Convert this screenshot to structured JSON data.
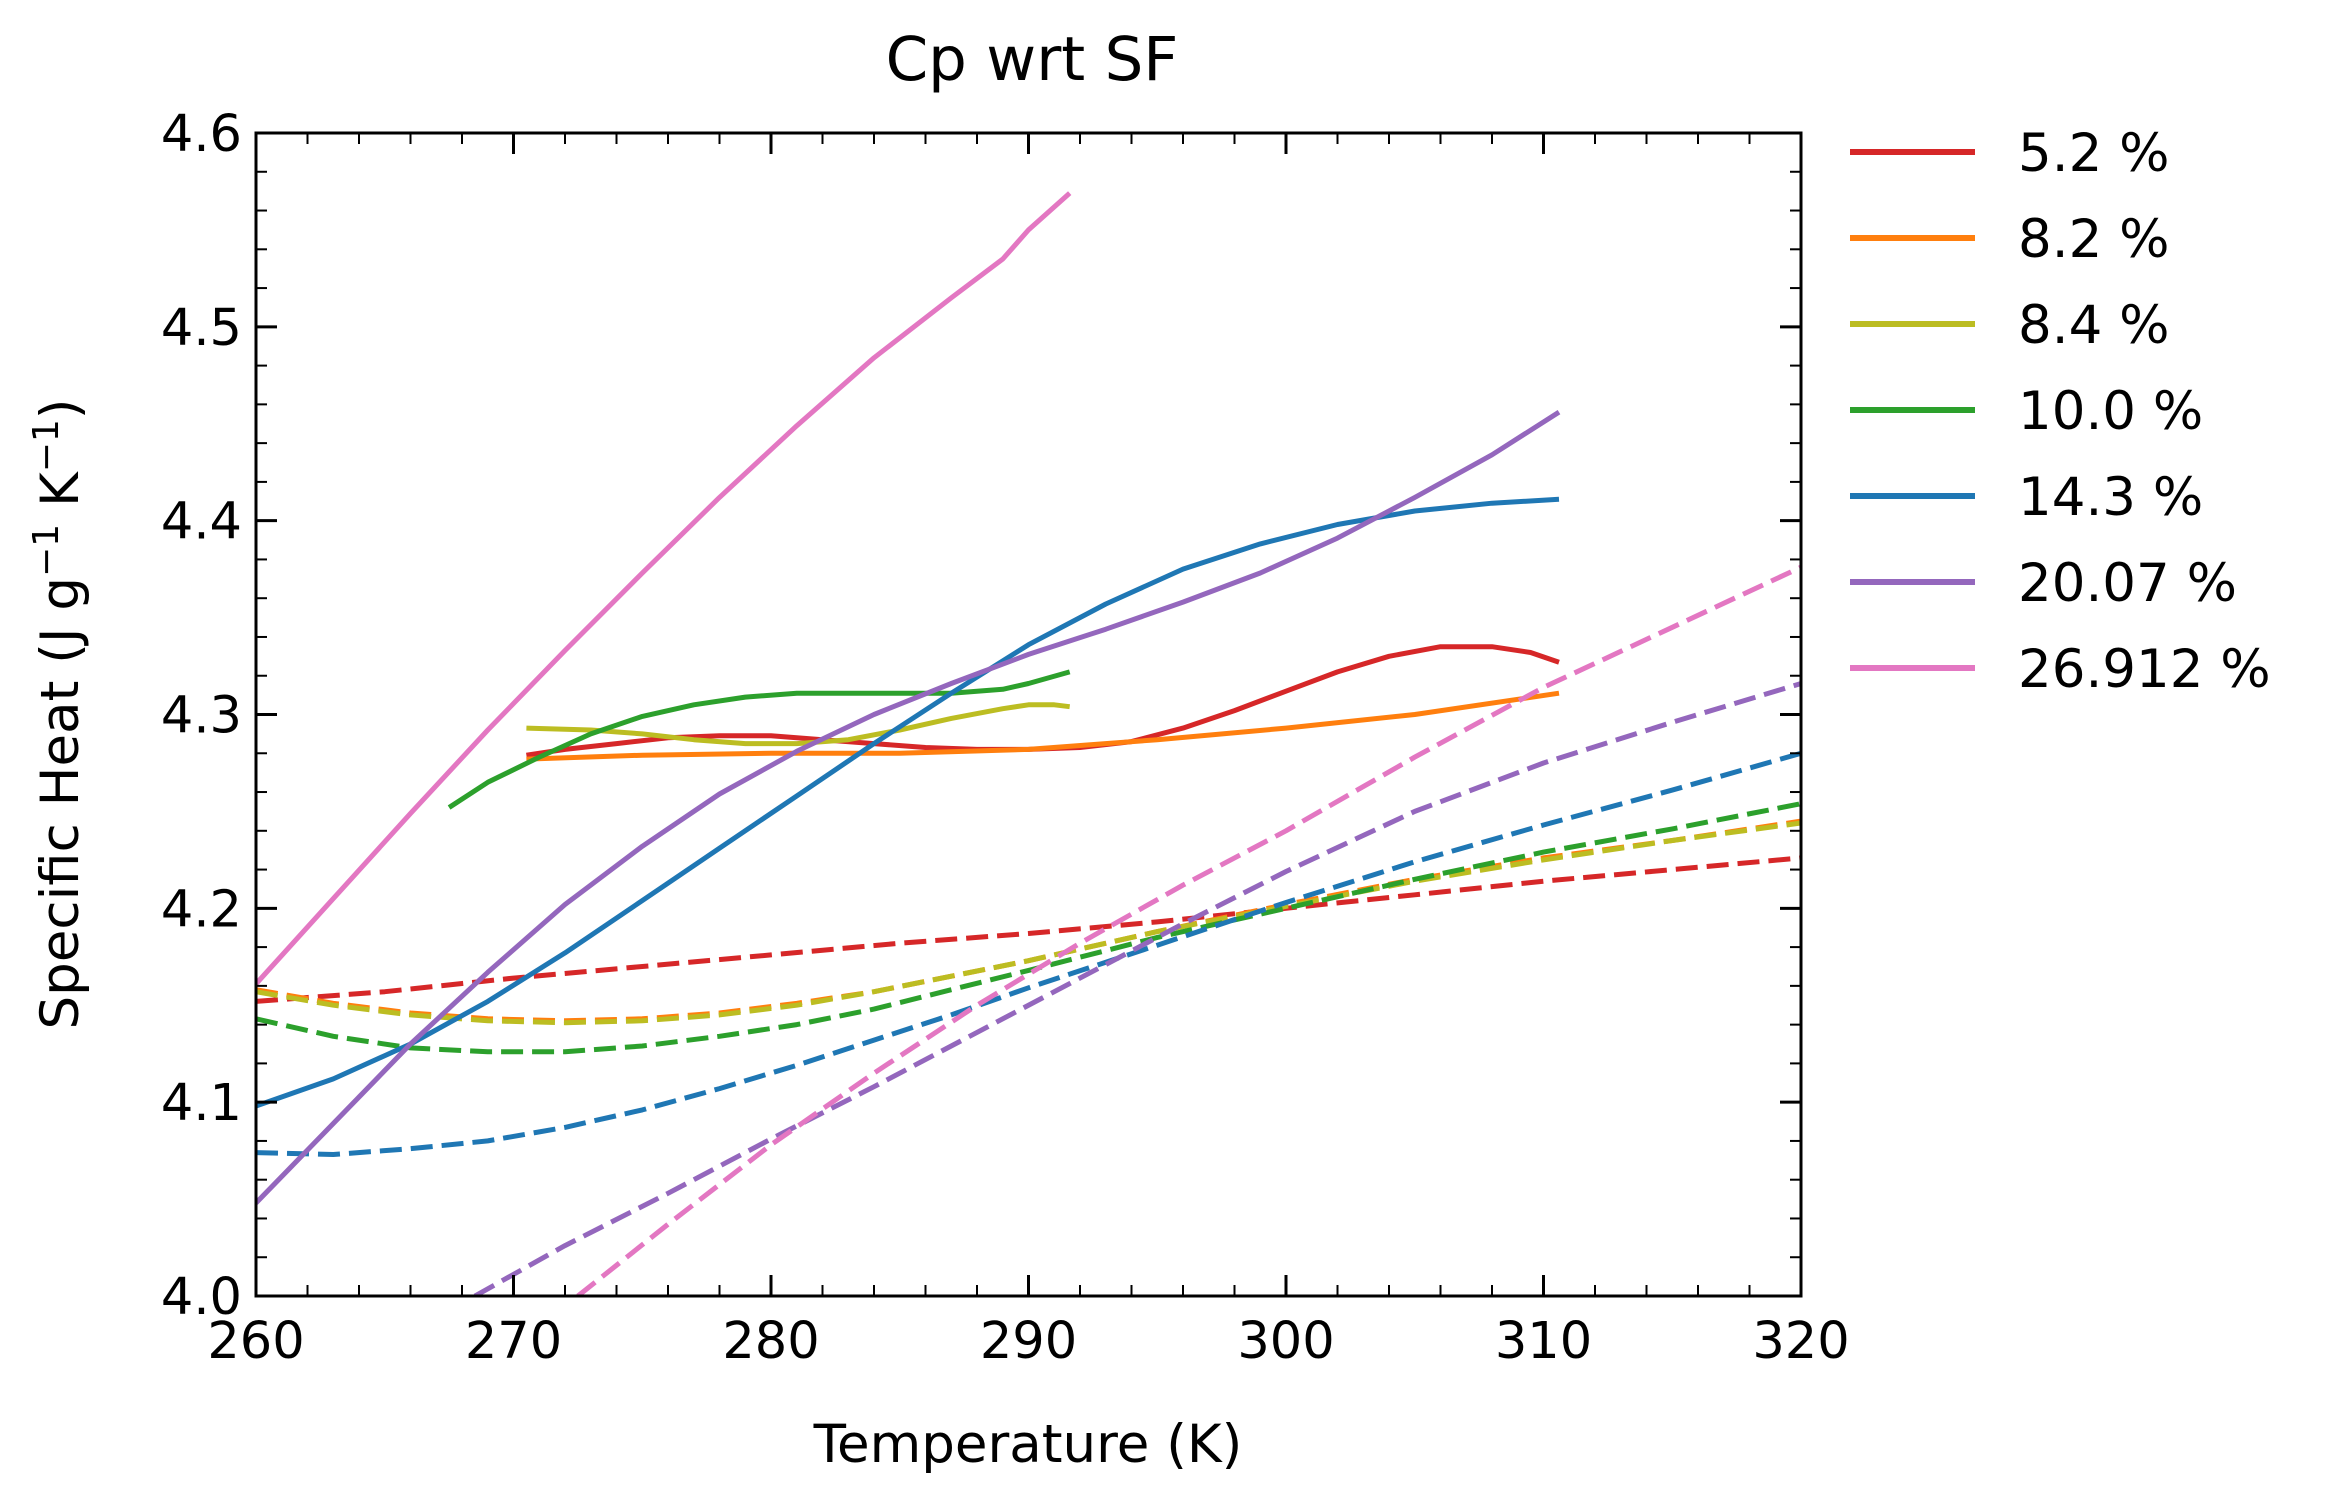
{
  "chart_data": {
    "type": "line",
    "title": "Cp wrt SF",
    "xlabel": "Temperature (K)",
    "ylabel": {
      "base": "Specific Heat (J g",
      "sup1": "−1",
      "mid": " K",
      "sup2": "−1",
      "end": ")"
    },
    "xlim": [
      260,
      320
    ],
    "ylim": [
      4.0,
      4.6
    ],
    "x_ticks": [
      260,
      270,
      280,
      290,
      300,
      310,
      320
    ],
    "x_tick_labels": [
      "260",
      "270",
      "280",
      "290",
      "300",
      "310",
      "320"
    ],
    "y_ticks": [
      4.0,
      4.1,
      4.2,
      4.3,
      4.4,
      4.5,
      4.6
    ],
    "y_tick_labels": [
      "4.0",
      "4.1",
      "4.2",
      "4.3",
      "4.4",
      "4.5",
      "4.6"
    ],
    "x_minor_step": 2,
    "y_minor_step": 0.02,
    "grid": false,
    "legend_position": "outside-right",
    "series": [
      {
        "name": "5.2 %",
        "color": "#d62728",
        "solid": [
          [
            270.5,
            4.279
          ],
          [
            272,
            4.282
          ],
          [
            274,
            4.285
          ],
          [
            276,
            4.288
          ],
          [
            278,
            4.289
          ],
          [
            280,
            4.289
          ],
          [
            282,
            4.287
          ],
          [
            284,
            4.285
          ],
          [
            286,
            4.283
          ],
          [
            288,
            4.282
          ],
          [
            290,
            4.282
          ],
          [
            292,
            4.283
          ],
          [
            294,
            4.286
          ],
          [
            296,
            4.293
          ],
          [
            298,
            4.302
          ],
          [
            300,
            4.312
          ],
          [
            302,
            4.322
          ],
          [
            304,
            4.33
          ],
          [
            306,
            4.335
          ],
          [
            308,
            4.335
          ],
          [
            309.5,
            4.332
          ],
          [
            310.6,
            4.327
          ]
        ],
        "dashed": [
          [
            260,
            4.152
          ],
          [
            265,
            4.157
          ],
          [
            270,
            4.164
          ],
          [
            275,
            4.17
          ],
          [
            280,
            4.176
          ],
          [
            285,
            4.182
          ],
          [
            290,
            4.187
          ],
          [
            295,
            4.193
          ],
          [
            300,
            4.2
          ],
          [
            305,
            4.207
          ],
          [
            310,
            4.214
          ],
          [
            315,
            4.22
          ],
          [
            320,
            4.226
          ]
        ]
      },
      {
        "name": "8.2 %",
        "color": "#ff7f0e",
        "solid": [
          [
            270.5,
            4.277
          ],
          [
            275,
            4.279
          ],
          [
            280,
            4.28
          ],
          [
            285,
            4.28
          ],
          [
            290,
            4.282
          ],
          [
            295,
            4.287
          ],
          [
            300,
            4.293
          ],
          [
            305,
            4.3
          ],
          [
            310.6,
            4.311
          ]
        ],
        "dashed": [
          [
            260,
            4.158
          ],
          [
            263,
            4.151
          ],
          [
            266,
            4.146
          ],
          [
            269,
            4.143
          ],
          [
            272,
            4.142
          ],
          [
            275,
            4.143
          ],
          [
            278,
            4.146
          ],
          [
            281,
            4.151
          ],
          [
            284,
            4.157
          ],
          [
            287,
            4.165
          ],
          [
            290,
            4.173
          ],
          [
            295,
            4.188
          ],
          [
            300,
            4.202
          ],
          [
            305,
            4.215
          ],
          [
            310,
            4.226
          ],
          [
            315,
            4.235
          ],
          [
            320,
            4.245
          ]
        ]
      },
      {
        "name": "8.4 %",
        "color": "#bcbd22",
        "solid": [
          [
            270.5,
            4.293
          ],
          [
            273,
            4.292
          ],
          [
            275,
            4.29
          ],
          [
            277,
            4.287
          ],
          [
            279,
            4.285
          ],
          [
            281,
            4.285
          ],
          [
            283,
            4.287
          ],
          [
            285,
            4.292
          ],
          [
            287,
            4.298
          ],
          [
            289,
            4.303
          ],
          [
            290,
            4.305
          ],
          [
            291,
            4.305
          ],
          [
            291.6,
            4.304
          ]
        ],
        "dashed": [
          [
            260,
            4.157
          ],
          [
            263,
            4.15
          ],
          [
            266,
            4.145
          ],
          [
            269,
            4.142
          ],
          [
            272,
            4.141
          ],
          [
            275,
            4.142
          ],
          [
            278,
            4.145
          ],
          [
            281,
            4.15
          ],
          [
            284,
            4.157
          ],
          [
            287,
            4.165
          ],
          [
            290,
            4.173
          ],
          [
            295,
            4.188
          ],
          [
            300,
            4.201
          ],
          [
            305,
            4.214
          ],
          [
            310,
            4.225
          ],
          [
            315,
            4.235
          ],
          [
            320,
            4.244
          ]
        ]
      },
      {
        "name": "10.0 %",
        "color": "#2ca02c",
        "solid": [
          [
            267.5,
            4.252
          ],
          [
            269,
            4.265
          ],
          [
            271,
            4.278
          ],
          [
            273,
            4.29
          ],
          [
            275,
            4.299
          ],
          [
            277,
            4.305
          ],
          [
            279,
            4.309
          ],
          [
            281,
            4.311
          ],
          [
            283,
            4.311
          ],
          [
            285,
            4.311
          ],
          [
            287,
            4.311
          ],
          [
            289,
            4.313
          ],
          [
            290,
            4.316
          ],
          [
            291.6,
            4.322
          ]
        ],
        "dashed": [
          [
            260,
            4.143
          ],
          [
            263,
            4.134
          ],
          [
            266,
            4.128
          ],
          [
            269,
            4.126
          ],
          [
            272,
            4.126
          ],
          [
            275,
            4.129
          ],
          [
            278,
            4.134
          ],
          [
            281,
            4.14
          ],
          [
            284,
            4.148
          ],
          [
            287,
            4.158
          ],
          [
            290,
            4.168
          ],
          [
            295,
            4.185
          ],
          [
            300,
            4.2
          ],
          [
            305,
            4.215
          ],
          [
            310,
            4.229
          ],
          [
            315,
            4.241
          ],
          [
            320,
            4.254
          ]
        ]
      },
      {
        "name": "14.3 %",
        "color": "#1f77b4",
        "solid": [
          [
            260,
            4.098
          ],
          [
            263,
            4.112
          ],
          [
            266,
            4.13
          ],
          [
            269,
            4.152
          ],
          [
            272,
            4.177
          ],
          [
            275,
            4.204
          ],
          [
            278,
            4.231
          ],
          [
            281,
            4.258
          ],
          [
            284,
            4.285
          ],
          [
            287,
            4.311
          ],
          [
            290,
            4.336
          ],
          [
            293,
            4.357
          ],
          [
            296,
            4.375
          ],
          [
            299,
            4.388
          ],
          [
            302,
            4.398
          ],
          [
            305,
            4.405
          ],
          [
            308,
            4.409
          ],
          [
            310.6,
            4.411
          ]
        ],
        "dashed": [
          [
            260,
            4.074
          ],
          [
            263,
            4.073
          ],
          [
            266,
            4.076
          ],
          [
            269,
            4.08
          ],
          [
            272,
            4.087
          ],
          [
            275,
            4.096
          ],
          [
            278,
            4.107
          ],
          [
            281,
            4.119
          ],
          [
            284,
            4.132
          ],
          [
            287,
            4.145
          ],
          [
            290,
            4.159
          ],
          [
            295,
            4.181
          ],
          [
            300,
            4.203
          ],
          [
            305,
            4.224
          ],
          [
            310,
            4.243
          ],
          [
            315,
            4.261
          ],
          [
            320,
            4.28
          ]
        ]
      },
      {
        "name": "20.07 %",
        "color": "#9467bd",
        "solid": [
          [
            260,
            4.048
          ],
          [
            263,
            4.089
          ],
          [
            266,
            4.13
          ],
          [
            269,
            4.167
          ],
          [
            272,
            4.202
          ],
          [
            275,
            4.232
          ],
          [
            278,
            4.259
          ],
          [
            281,
            4.281
          ],
          [
            284,
            4.3
          ],
          [
            287,
            4.316
          ],
          [
            290,
            4.331
          ],
          [
            293,
            4.344
          ],
          [
            296,
            4.358
          ],
          [
            299,
            4.373
          ],
          [
            302,
            4.391
          ],
          [
            305,
            4.412
          ],
          [
            308,
            4.434
          ],
          [
            310.6,
            4.456
          ]
        ],
        "dashed": [
          [
            268.5,
            4.0
          ],
          [
            272,
            4.026
          ],
          [
            276,
            4.053
          ],
          [
            280,
            4.081
          ],
          [
            284,
            4.108
          ],
          [
            288,
            4.136
          ],
          [
            292,
            4.164
          ],
          [
            296,
            4.192
          ],
          [
            300,
            4.219
          ],
          [
            305,
            4.25
          ],
          [
            310,
            4.275
          ],
          [
            315,
            4.296
          ],
          [
            320,
            4.316
          ]
        ]
      },
      {
        "name": "26.912 %",
        "color": "#e377c2",
        "solid": [
          [
            260,
            4.161
          ],
          [
            263,
            4.205
          ],
          [
            266,
            4.249
          ],
          [
            269,
            4.292
          ],
          [
            272,
            4.333
          ],
          [
            275,
            4.373
          ],
          [
            278,
            4.412
          ],
          [
            281,
            4.449
          ],
          [
            284,
            4.484
          ],
          [
            287,
            4.515
          ],
          [
            289,
            4.535
          ],
          [
            290,
            4.55
          ],
          [
            291.6,
            4.569
          ]
        ],
        "dashed": [
          [
            272.5,
            4.0
          ],
          [
            276,
            4.037
          ],
          [
            280,
            4.078
          ],
          [
            284,
            4.115
          ],
          [
            288,
            4.15
          ],
          [
            292,
            4.182
          ],
          [
            296,
            4.212
          ],
          [
            300,
            4.24
          ],
          [
            305,
            4.278
          ],
          [
            310,
            4.314
          ],
          [
            315,
            4.345
          ],
          [
            320,
            4.376
          ]
        ]
      }
    ]
  }
}
